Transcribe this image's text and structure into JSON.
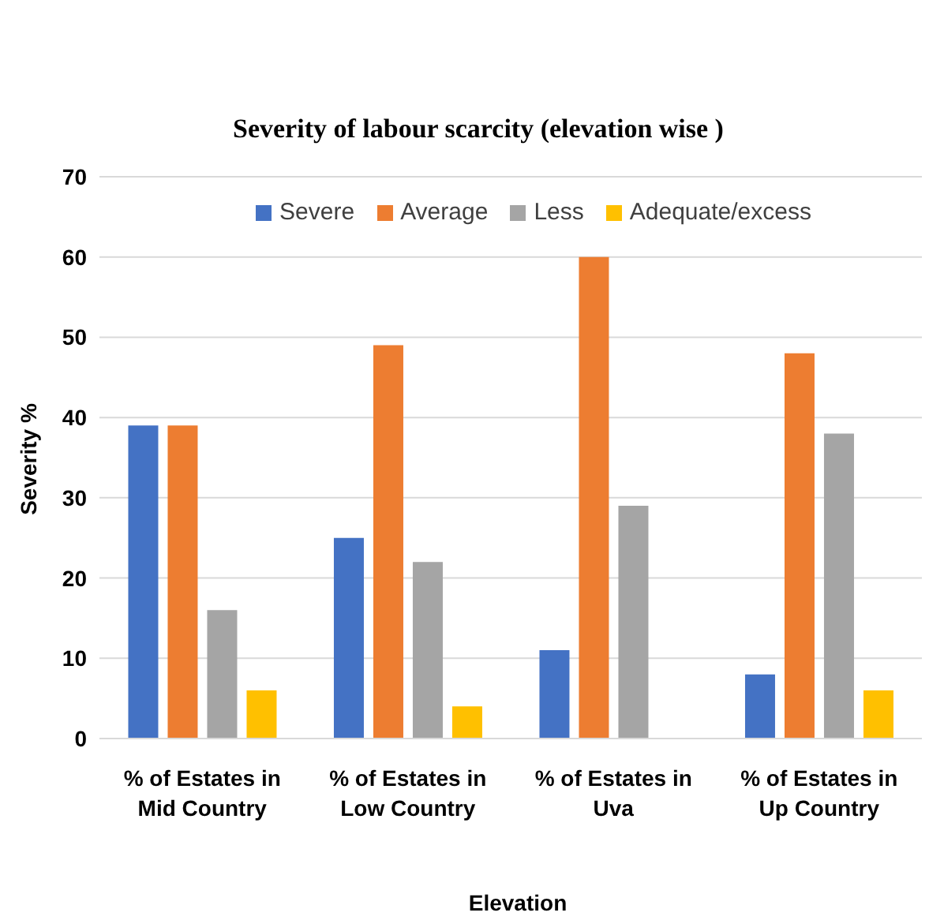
{
  "chart_data": {
    "type": "bar",
    "title": "Severity of labour scarcity (elevation wise )",
    "xlabel": "Elevation",
    "ylabel": "Severity %",
    "categories": [
      "% of Estates in Mid Country",
      "% of Estates in Low Country",
      "% of Estates in Uva",
      "% of Estates in Up Country"
    ],
    "series": [
      {
        "name": "Severe",
        "color": "#4472c4",
        "values": [
          39,
          25,
          11,
          8
        ]
      },
      {
        "name": "Average",
        "color": "#ed7d31",
        "values": [
          39,
          49,
          60,
          48
        ]
      },
      {
        "name": "Less",
        "color": "#a5a5a5",
        "values": [
          16,
          22,
          29,
          38
        ]
      },
      {
        "name": "Adequate/excess",
        "color": "#ffc000",
        "values": [
          6,
          4,
          0,
          6
        ]
      }
    ],
    "ylim": [
      0,
      70
    ],
    "yticks": [
      0,
      10,
      20,
      30,
      40,
      50,
      60,
      70
    ],
    "grid": "y",
    "legend": "top"
  }
}
